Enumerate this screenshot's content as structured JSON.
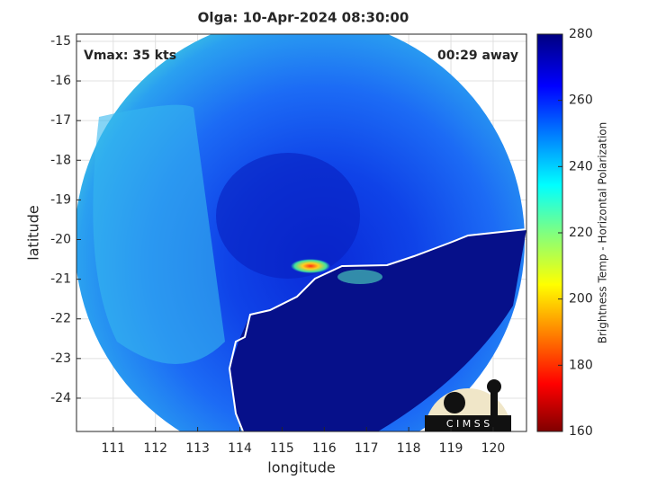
{
  "chart_data": {
    "type": "map",
    "title": "Olga: 10-Apr-2024 08:30:00",
    "annotations": [
      "Vmax: 35 kts",
      "00:29 away"
    ],
    "x_label": "longitude",
    "y_label": "latitude",
    "xlim": [
      110.13,
      120.79
    ],
    "xticks": [
      111,
      112,
      113,
      114,
      115,
      116,
      117,
      118,
      119,
      120
    ],
    "ylim": [
      -24.84,
      -14.82
    ],
    "yticks": [
      -15,
      -16,
      -17,
      -18,
      -19,
      -20,
      -21,
      -22,
      -23,
      -24
    ],
    "grid": true,
    "colorbar": {
      "label": "Brightness Temp - Horizontal Polarization",
      "lim": [
        160,
        280
      ],
      "ticks": [
        160,
        180,
        200,
        220,
        240,
        260,
        280
      ]
    },
    "logo": "C I M S S"
  }
}
